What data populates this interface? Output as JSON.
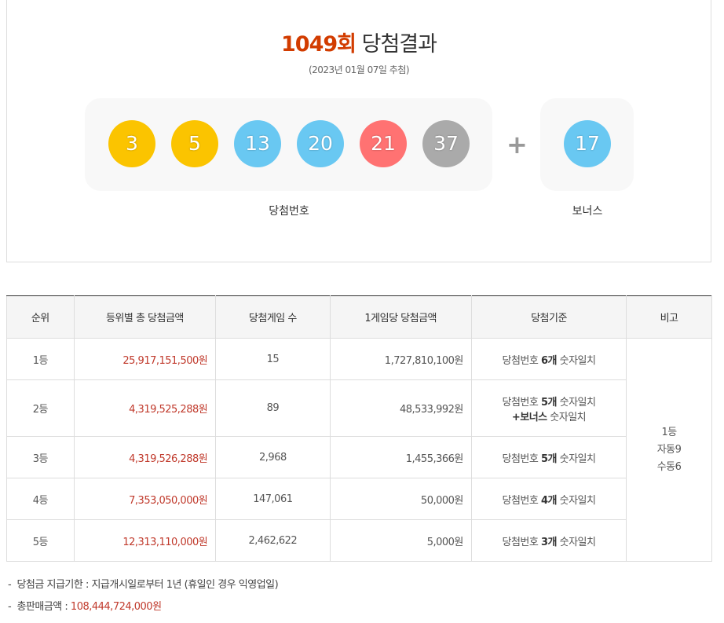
{
  "header": {
    "round": "1049회",
    "title": "당첨결과",
    "date": "(2023년 01월 07일 추첨)"
  },
  "draw": {
    "numbers": [
      {
        "label": "3",
        "color": "#fbc400"
      },
      {
        "label": "5",
        "color": "#fbc400"
      },
      {
        "label": "13",
        "color": "#69c8f2"
      },
      {
        "label": "20",
        "color": "#69c8f2"
      },
      {
        "label": "21",
        "color": "#ff7272"
      },
      {
        "label": "37",
        "color": "#aaaaaa"
      }
    ],
    "plus": "+",
    "bonus": {
      "label": "17",
      "color": "#69c8f2"
    },
    "numbers_label": "당첨번호",
    "bonus_label": "보너스"
  },
  "table": {
    "columns": [
      "순위",
      "등위별 총 당첨금액",
      "당첨게임 수",
      "1게임당 당첨금액",
      "당첨기준",
      "비고"
    ],
    "rows": [
      {
        "rank": "1등",
        "total": "25,917,151,500원",
        "games": "15",
        "per_game": "1,727,810,100원",
        "criteria": [
          [
            {
              "text": "당첨번호 "
            },
            {
              "text": "6개",
              "bold": true
            },
            {
              "text": " 숫자일치"
            }
          ]
        ]
      },
      {
        "rank": "2등",
        "total": "4,319,525,288원",
        "games": "89",
        "per_game": "48,533,992원",
        "criteria": [
          [
            {
              "text": "당첨번호 "
            },
            {
              "text": "5개",
              "bold": true
            },
            {
              "text": " 숫자일치"
            }
          ],
          [
            {
              "text": "+보너스",
              "bold": true
            },
            {
              "text": " 숫자일치"
            }
          ]
        ]
      },
      {
        "rank": "3등",
        "total": "4,319,526,288원",
        "games": "2,968",
        "per_game": "1,455,366원",
        "criteria": [
          [
            {
              "text": "당첨번호 "
            },
            {
              "text": "5개",
              "bold": true
            },
            {
              "text": " 숫자일치"
            }
          ]
        ]
      },
      {
        "rank": "4등",
        "total": "7,353,050,000원",
        "games": "147,061",
        "per_game": "50,000원",
        "criteria": [
          [
            {
              "text": "당첨번호 "
            },
            {
              "text": "4개",
              "bold": true
            },
            {
              "text": " 숫자일치"
            }
          ]
        ]
      },
      {
        "rank": "5등",
        "total": "12,313,110,000원",
        "games": "2,462,622",
        "per_game": "5,000원",
        "criteria": [
          [
            {
              "text": "당첨번호 "
            },
            {
              "text": "3개",
              "bold": true
            },
            {
              "text": " 숫자일치"
            }
          ]
        ]
      }
    ],
    "remark": [
      "1등",
      "자동9",
      "수동6"
    ]
  },
  "notes": [
    {
      "label": "당첨금 지급기한 : 지급개시일로부터 1년 (휴일인 경우 익영업일)"
    },
    {
      "label": "총판매금액 : ",
      "value": "108,444,724,000원"
    }
  ]
}
